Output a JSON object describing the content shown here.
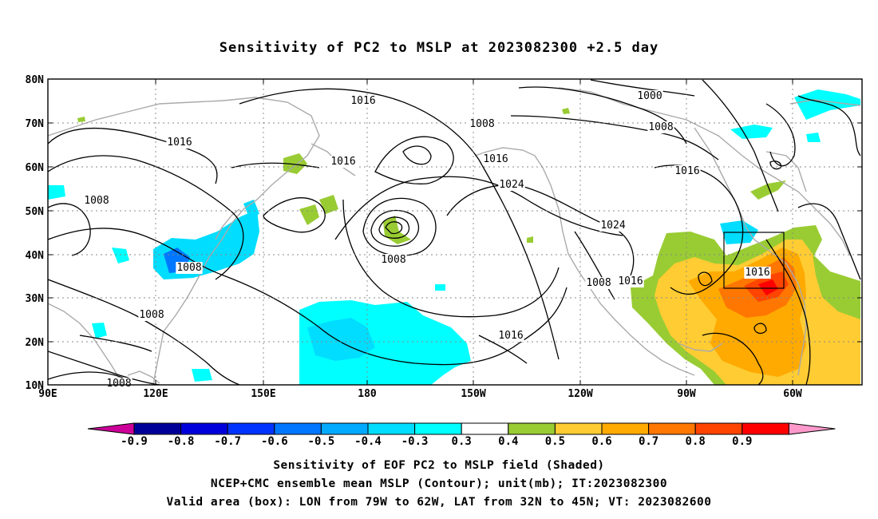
{
  "title": "Sensitivity of PC2 to MSLP at 2023082300 +2.5 day",
  "map": {
    "lat_ticks": [
      "80N",
      "70N",
      "60N",
      "50N",
      "40N",
      "30N",
      "20N",
      "10N"
    ],
    "lon_ticks": [
      "90E",
      "120E",
      "150E",
      "180",
      "150W",
      "120W",
      "90W",
      "60W"
    ],
    "contour_labels": [
      {
        "text": "1016",
        "label": "north-pacific-high-north"
      },
      {
        "text": "1000",
        "label": "arctic-low"
      },
      {
        "text": "1008",
        "label": "bering-trough"
      },
      {
        "text": "1008",
        "label": "north-atlantic-trough"
      },
      {
        "text": "1016",
        "label": "siberia"
      },
      {
        "text": "1016",
        "label": "kamchatka"
      },
      {
        "text": "1016",
        "label": "gulf-of-alaska"
      },
      {
        "text": "1024",
        "label": "pacific-high-core"
      },
      {
        "text": "1024",
        "label": "west-us-ridge"
      },
      {
        "text": "1016",
        "label": "canada"
      },
      {
        "text": "1008",
        "label": "central-asia"
      },
      {
        "text": "1008",
        "label": "east-china"
      },
      {
        "text": "1008",
        "label": "aleutian-low"
      },
      {
        "text": "1008",
        "label": "mexico-low"
      },
      {
        "text": "1016",
        "label": "gulf-coast"
      },
      {
        "text": "1016",
        "label": "valid-box"
      },
      {
        "text": "1016",
        "label": "subtropical-pacific"
      },
      {
        "text": "1008",
        "label": "south-china-sea"
      },
      {
        "text": "1008",
        "label": "bay-of-bengal"
      }
    ],
    "valid_box": {
      "lon_west": "79W",
      "lon_east": "62W",
      "lat_south": "32N",
      "lat_north": "45N"
    }
  },
  "colorbar": {
    "labels": [
      "-0.9",
      "-0.8",
      "-0.7",
      "-0.6",
      "-0.5",
      "-0.4",
      "-0.3",
      "0.3",
      "0.4",
      "0.5",
      "0.6",
      "0.7",
      "0.8",
      "0.9"
    ],
    "colors": [
      "#000099",
      "#0000dd",
      "#0033ff",
      "#0077ff",
      "#00aaff",
      "#00ddff",
      "#00ffff",
      "#ffffff",
      "#99cc33",
      "#ffcc33",
      "#ffaa00",
      "#ff7700",
      "#ff4400",
      "#ff0000"
    ],
    "left_cap": "#cc0099",
    "right_cap": "#ff99cc"
  },
  "captions": [
    "Sensitivity of EOF PC2 to MSLP field (Shaded)",
    "NCEP+CMC ensemble mean MSLP (Contour); unit(mb); IT:2023082300",
    "Valid area (box): LON from 79W to 62W, LAT from 32N to 45N; VT: 2023082600"
  ]
}
